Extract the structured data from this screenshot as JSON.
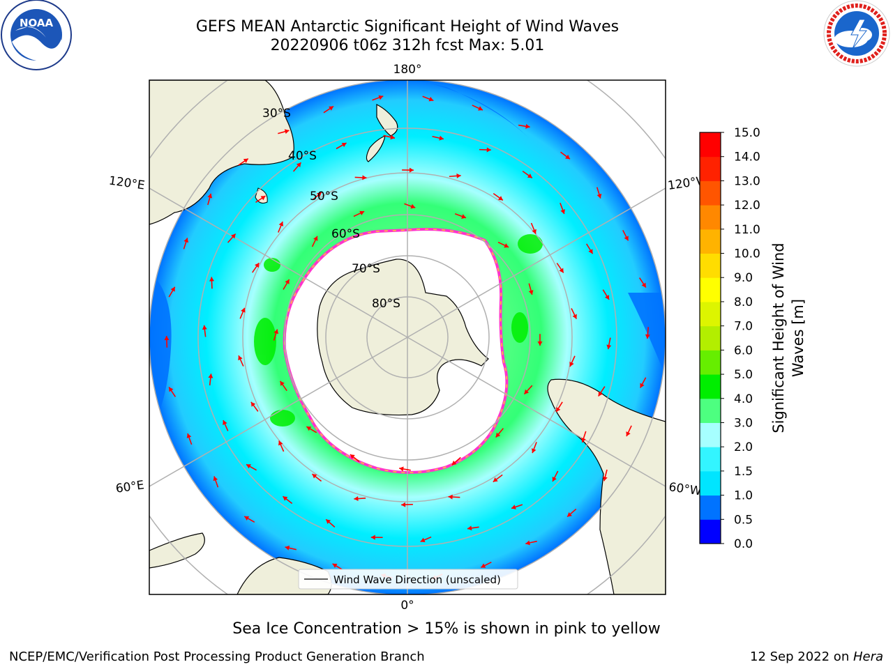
{
  "title": {
    "line1": "GEFS MEAN Antarctic Significant Height of Wind Waves",
    "line2": "20220906 t06z 312h fcst   Max: 5.01"
  },
  "logos": {
    "left": {
      "name": "noaa-logo",
      "text": "NOAA"
    },
    "right": {
      "name": "nws-logo",
      "text": "NATIONAL WEATHER SERVICE"
    }
  },
  "map": {
    "projection": "south-polar-stereographic",
    "lon_labels": {
      "top": "180°",
      "bottom": "0°",
      "left_upper": "120°E",
      "left_lower": "60°E",
      "right_upper": "120°W",
      "right_lower": "60°W"
    },
    "lat_labels": [
      "30°S",
      "40°S",
      "50°S",
      "60°S",
      "70°S",
      "80°S"
    ],
    "colors": {
      "land": "#efefdb",
      "ice_edge": "#ff33cc",
      "arrows": "#ff0000",
      "ocean_low": "#0073ff",
      "ocean_mid": "#00eeff",
      "ocean_high": "#33ff66"
    },
    "legend": {
      "label": "Wind Wave Direction (unscaled)"
    }
  },
  "colorbar": {
    "label_line1": "Significant Height of Wind",
    "label_line2": "Waves [m]",
    "ticks": [
      "0.0",
      "0.5",
      "1.0",
      "1.5",
      "2.0",
      "3.0",
      "4.0",
      "5.0",
      "6.0",
      "7.0",
      "8.0",
      "9.0",
      "10.0",
      "11.0",
      "12.0",
      "13.0",
      "14.0",
      "15.0"
    ],
    "colors": [
      "#0000ff",
      "#0073ff",
      "#00e5ff",
      "#33f5ff",
      "#a6ffff",
      "#4dff80",
      "#00ee00",
      "#66ee00",
      "#b3ee00",
      "#ddf500",
      "#ffff00",
      "#ffdd00",
      "#ffb300",
      "#ff8800",
      "#ff5500",
      "#ff2200",
      "#ff0000"
    ]
  },
  "subtitle": "Sea Ice Concentration > 15% is shown in pink to yellow",
  "footer": {
    "left": "NCEP/EMC/Verification Post Processing Product Generation Branch",
    "right_prefix": "12 Sep 2022 on ",
    "right_host": "Hera"
  }
}
